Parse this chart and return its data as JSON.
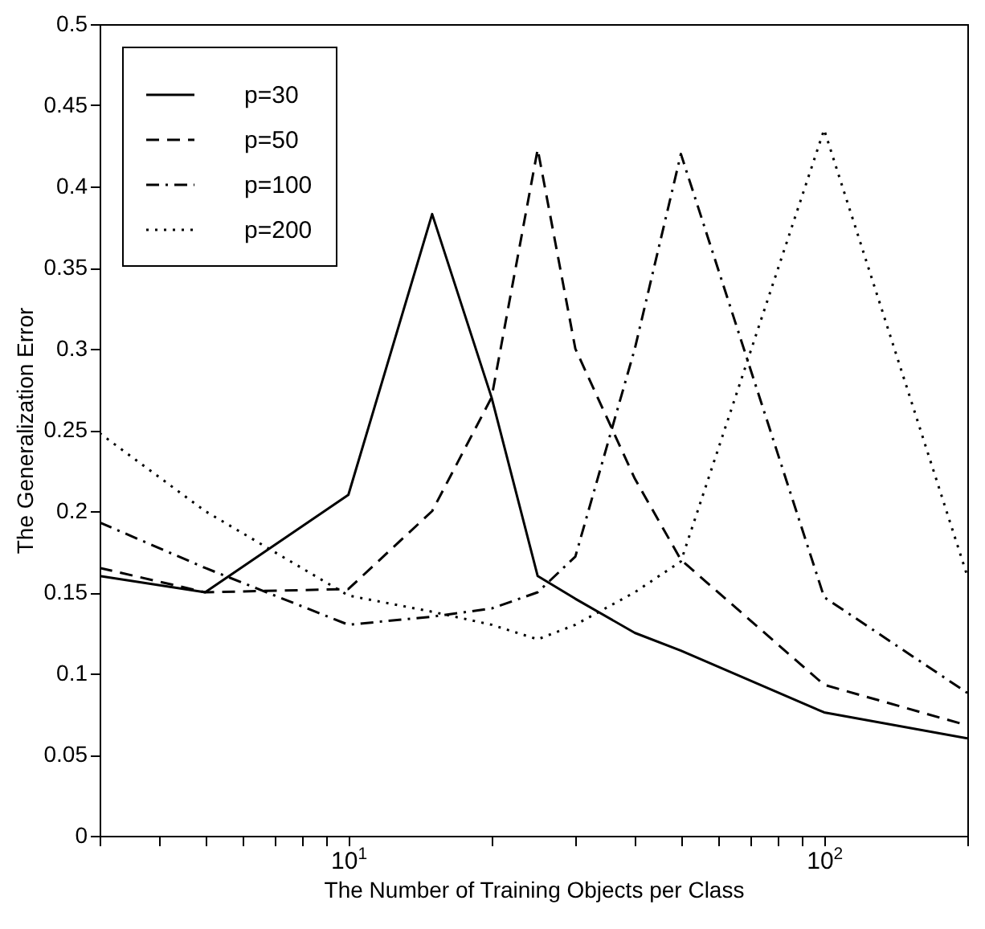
{
  "chart_data": {
    "type": "line",
    "xlabel": "The Number of Training Objects per Class",
    "ylabel": "The Generalization Error",
    "x": [
      3,
      5,
      10,
      15,
      20,
      25,
      30,
      40,
      50,
      100,
      200
    ],
    "series": [
      {
        "name": "p=30",
        "color": "#000000",
        "line_style": "solid",
        "values": [
          0.16,
          0.15,
          0.21,
          0.383,
          0.27,
          0.16,
          0.146,
          0.125,
          0.114,
          0.076,
          0.06
        ]
      },
      {
        "name": "p=50",
        "color": "#000000",
        "line_style": "dashed",
        "values": [
          0.165,
          0.15,
          0.152,
          0.2,
          0.27,
          0.423,
          0.3,
          0.22,
          0.17,
          0.093,
          0.068
        ]
      },
      {
        "name": "p=100",
        "color": "#000000",
        "line_style": "dashdot",
        "values": [
          0.193,
          0.165,
          0.13,
          0.135,
          0.14,
          0.15,
          0.172,
          0.3,
          0.42,
          0.147,
          0.088
        ]
      },
      {
        "name": "p=200",
        "color": "#000000",
        "line_style": "dotted",
        "values": [
          0.248,
          0.2,
          0.148,
          0.138,
          0.13,
          0.121,
          0.13,
          0.15,
          0.169,
          0.435,
          0.16
        ]
      }
    ],
    "log": "x",
    "xlim": [
      3,
      200
    ],
    "xticks": [
      {
        "value": 3,
        "label": null
      },
      {
        "value": 4,
        "label": null
      },
      {
        "value": 5,
        "label": null
      },
      {
        "value": 6,
        "label": null
      },
      {
        "value": 7,
        "label": null
      },
      {
        "value": 8,
        "label": null
      },
      {
        "value": 9,
        "label": null
      },
      {
        "value": 10,
        "label": "10$^{1}$"
      },
      {
        "value": 20,
        "label": null
      },
      {
        "value": 30,
        "label": null
      },
      {
        "value": 40,
        "label": null
      },
      {
        "value": 50,
        "label": null
      },
      {
        "value": 60,
        "label": null
      },
      {
        "value": 70,
        "label": null
      },
      {
        "value": 80,
        "label": null
      },
      {
        "value": 90,
        "label": null
      },
      {
        "value": 100,
        "label": "10$^{2}$"
      },
      {
        "value": 200,
        "label": null
      }
    ],
    "ylim": [
      0,
      0.5
    ],
    "yticks": [
      0,
      0.05,
      0.1,
      0.15,
      0.2,
      0.25,
      0.3,
      0.35,
      0.4,
      0.45,
      0.5
    ],
    "grid": false,
    "legend": "top left"
  }
}
